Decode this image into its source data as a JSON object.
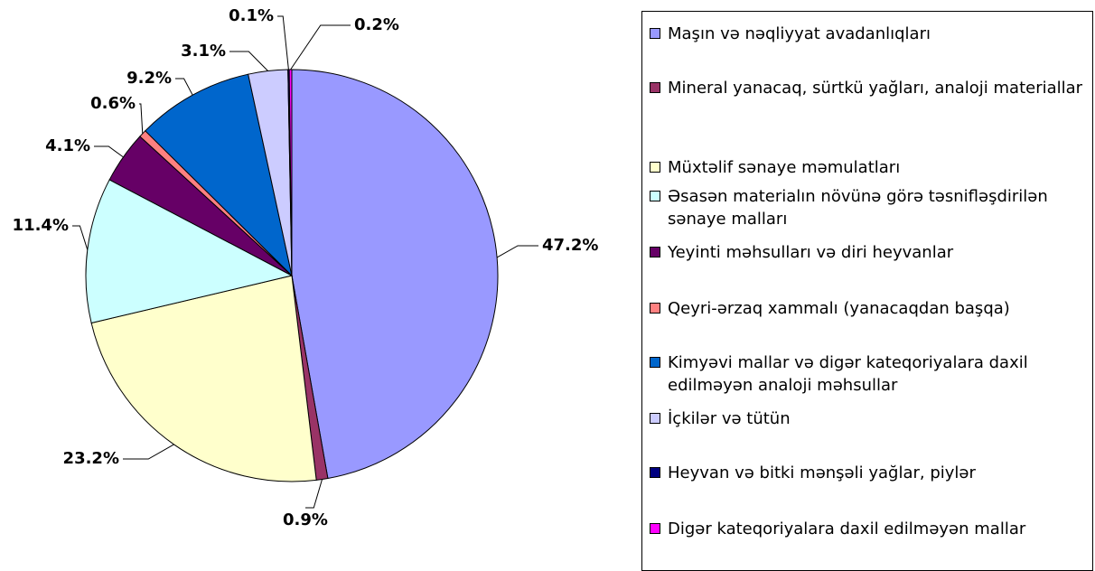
{
  "chart_data": {
    "type": "pie",
    "categories": [
      "Maşın və nəqliyyat avadanlıqları",
      "Mineral yanacaq, sürtkü yağları, analoji materiallar",
      "Müxtəlif sənaye məmulatları",
      "Əsasən materialın növünə görə təsnifləşdirilən sənaye malları",
      "Yeyinti məhsulları və diri heyvanlar",
      "Qeyri-ərzaq xammalı (yanacaqdan başqa)",
      "Kimyəvi mallar və digər kateqoriyalara daxil edilməyən analoji məhsullar",
      "İçkilər və tütün",
      "Heyvan və bitki mənşəli yağlar, piylər",
      "Digər kateqoriyalara daxil edilməyən mallar"
    ],
    "values": [
      47.2,
      0.9,
      23.2,
      11.4,
      4.1,
      0.6,
      9.2,
      3.1,
      0.1,
      0.2
    ],
    "value_labels": [
      "47.2%",
      "0.9%",
      "23.2%",
      "11.4%",
      "4.1%",
      "0.6%",
      "9.2%",
      "3.1%",
      "0.1%",
      "0.2%"
    ],
    "colors": [
      "#9999ff",
      "#993366",
      "#ffffcc",
      "#ccffff",
      "#660066",
      "#ff8080",
      "#0066cc",
      "#ccccff",
      "#000080",
      "#ff00ff"
    ],
    "legend": "right"
  }
}
